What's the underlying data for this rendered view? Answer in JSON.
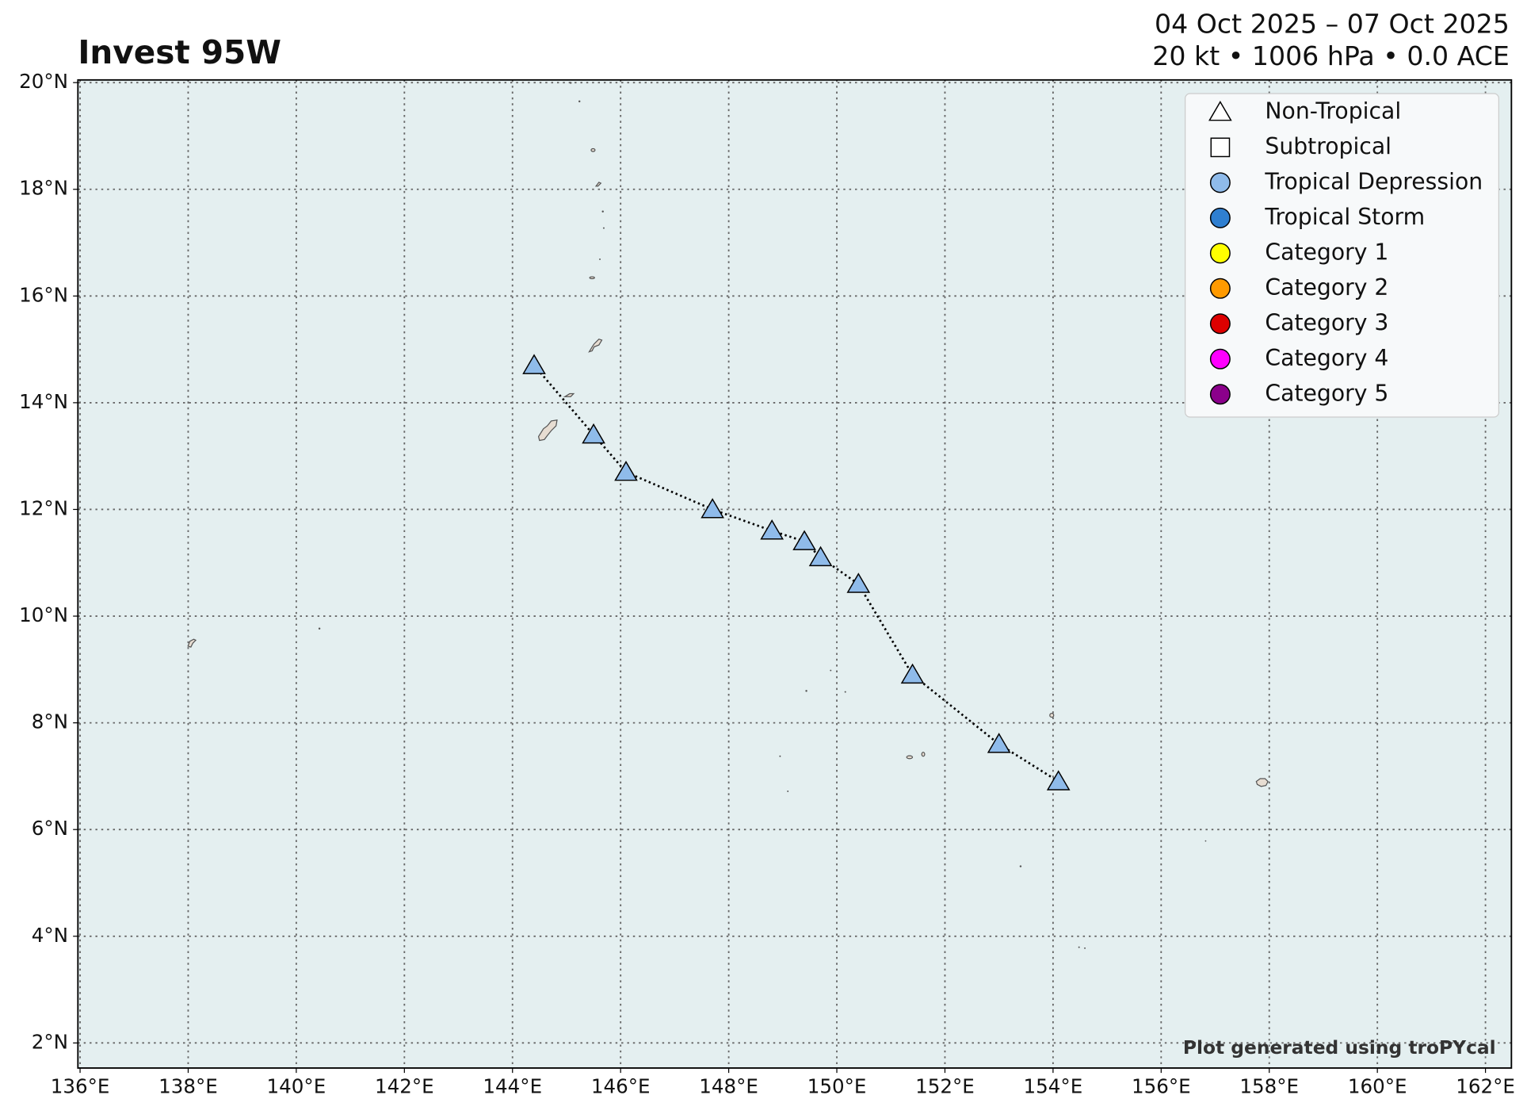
{
  "chart_data": {
    "type": "track",
    "title": "Invest 95W",
    "subtitle": "04 Oct 2025 – 07 Oct 2025",
    "subtitle2": "20 kt • 1006 hPa • 0.0 ACE",
    "credit": "Plot generated using troPYcal",
    "x": [
      144.4,
      145.5,
      146.1,
      147.7,
      148.8,
      149.4,
      149.7,
      150.4,
      151.4,
      153.0,
      154.1
    ],
    "values": [
      14.7,
      13.4,
      12.7,
      12.0,
      11.6,
      11.4,
      11.1,
      10.6,
      8.9,
      7.6,
      6.9
    ],
    "marker": "triangle",
    "color": "#8fbbea",
    "xlim": [
      135.96,
      162.48
    ],
    "ylim": [
      1.53,
      20.05
    ],
    "xticks": [
      {
        "value": 136,
        "label": "136°E"
      },
      {
        "value": 138,
        "label": "138°E"
      },
      {
        "value": 140,
        "label": "140°E"
      },
      {
        "value": 142,
        "label": "142°E"
      },
      {
        "value": 144,
        "label": "144°E"
      },
      {
        "value": 146,
        "label": "146°E"
      },
      {
        "value": 148,
        "label": "148°E"
      },
      {
        "value": 150,
        "label": "150°E"
      },
      {
        "value": 152,
        "label": "152°E"
      },
      {
        "value": 154,
        "label": "154°E"
      },
      {
        "value": 156,
        "label": "156°E"
      },
      {
        "value": 158,
        "label": "158°E"
      },
      {
        "value": 160,
        "label": "160°E"
      },
      {
        "value": 162,
        "label": "162°E"
      }
    ],
    "yticks": [
      {
        "value": 2,
        "label": "2°N"
      },
      {
        "value": 4,
        "label": "4°N"
      },
      {
        "value": 6,
        "label": "6°N"
      },
      {
        "value": 8,
        "label": "8°N"
      },
      {
        "value": 10,
        "label": "10°N"
      },
      {
        "value": 12,
        "label": "12°N"
      },
      {
        "value": 14,
        "label": "14°N"
      },
      {
        "value": 16,
        "label": "16°N"
      },
      {
        "value": 18,
        "label": "18°N"
      },
      {
        "value": 20,
        "label": "20°N"
      }
    ],
    "grid": true,
    "legend_position": "upper right",
    "legend": [
      {
        "label": "Non-Tropical",
        "marker": "triangle",
        "color": "#ffffff"
      },
      {
        "label": "Subtropical",
        "marker": "square",
        "color": "#ffffff"
      },
      {
        "label": "Tropical Depression",
        "marker": "circle",
        "color": "#8fbbea"
      },
      {
        "label": "Tropical Storm",
        "marker": "circle",
        "color": "#2f7fd0"
      },
      {
        "label": "Category 1",
        "marker": "circle",
        "color": "#ffff00"
      },
      {
        "label": "Category 2",
        "marker": "circle",
        "color": "#ff9a00"
      },
      {
        "label": "Category 3",
        "marker": "circle",
        "color": "#dd0000"
      },
      {
        "label": "Category 4",
        "marker": "circle",
        "color": "#ff00ff"
      },
      {
        "label": "Category 5",
        "marker": "circle",
        "color": "#8b008b"
      }
    ]
  }
}
